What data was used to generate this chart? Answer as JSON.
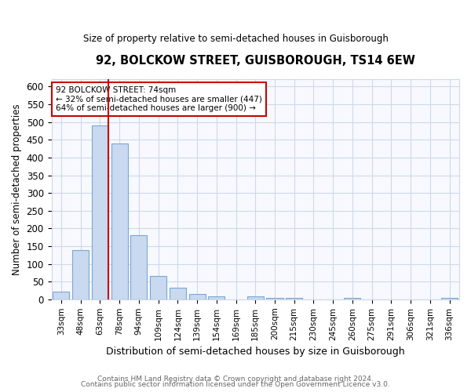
{
  "title": "92, BOLCKOW STREET, GUISBOROUGH, TS14 6EW",
  "subtitle": "Size of property relative to semi-detached houses in Guisborough",
  "xlabel": "Distribution of semi-detached houses by size in Guisborough",
  "ylabel": "Number of semi-detached properties",
  "footnote1": "Contains HM Land Registry data © Crown copyright and database right 2024.",
  "footnote2": "Contains public sector information licensed under the Open Government Licence v3.0.",
  "bar_labels": [
    "33sqm",
    "48sqm",
    "63sqm",
    "78sqm",
    "94sqm",
    "109sqm",
    "124sqm",
    "139sqm",
    "154sqm",
    "169sqm",
    "185sqm",
    "200sqm",
    "215sqm",
    "230sqm",
    "245sqm",
    "260sqm",
    "275sqm",
    "291sqm",
    "306sqm",
    "321sqm",
    "336sqm"
  ],
  "bar_values": [
    22,
    140,
    490,
    440,
    182,
    65,
    32,
    16,
    8,
    0,
    8,
    5,
    5,
    0,
    0,
    5,
    0,
    0,
    0,
    0,
    5
  ],
  "bar_color": "#c8d9f0",
  "bar_edge_color": "#7ba7d4",
  "red_line_color": "#cc0000",
  "annotation_text_line1": "92 BOLCKOW STREET: 74sqm",
  "annotation_text_line2": "← 32% of semi-detached houses are smaller (447)",
  "annotation_text_line3": "64% of semi-detached houses are larger (900) →",
  "annotation_box_edge_color": "#cc0000",
  "ylim": [
    0,
    620
  ],
  "yticks": [
    0,
    50,
    100,
    150,
    200,
    250,
    300,
    350,
    400,
    450,
    500,
    550,
    600
  ],
  "background_color": "#ffffff",
  "plot_bg_color": "#f7f9ff",
  "grid_color": "#d0d8e8"
}
